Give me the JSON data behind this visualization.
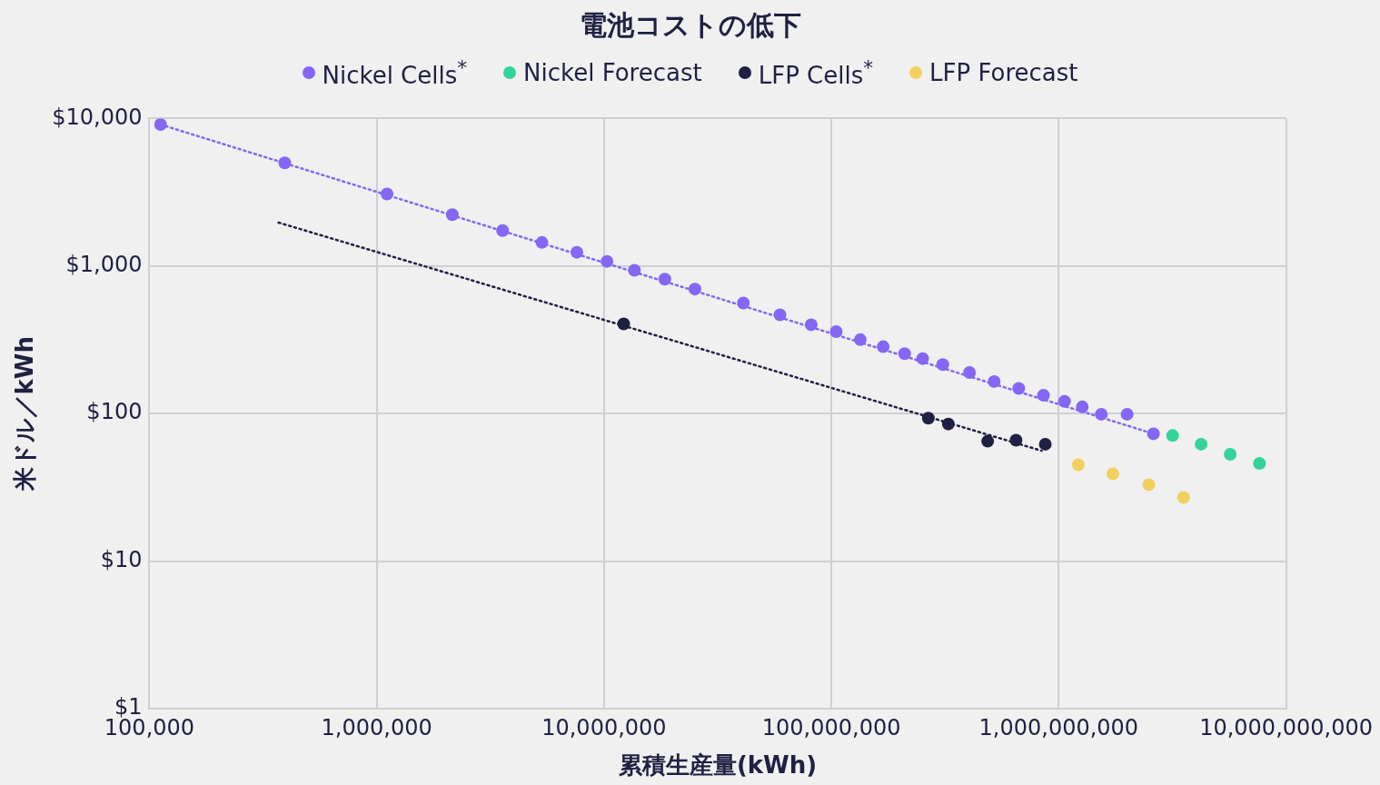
{
  "chart_data": {
    "type": "scatter",
    "title": "電池コストの低下",
    "xlabel": "累積生産量(kWh)",
    "ylabel": "米ドル／kWh",
    "log": "xy",
    "grid": true,
    "legend": "top",
    "marker": "circle",
    "xlim": [
      100000,
      10000000000
    ],
    "xticks": [
      {
        "value": 100000,
        "label": "100,000"
      },
      {
        "value": 1000000,
        "label": "1,000,000"
      },
      {
        "value": 10000000,
        "label": "10,000,000"
      },
      {
        "value": 100000000,
        "label": "100,000,000"
      },
      {
        "value": 1000000000,
        "label": "1,000,000,000"
      },
      {
        "value": 10000000000,
        "label": "10,000,000,000"
      }
    ],
    "ylim": [
      1,
      10000
    ],
    "yticks": [
      {
        "value": 1,
        "label": "$1"
      },
      {
        "value": 10,
        "label": "$10"
      },
      {
        "value": 100,
        "label": "$100"
      },
      {
        "value": 1000,
        "label": "$1,000"
      },
      {
        "value": 10000,
        "label": "$10,000"
      }
    ],
    "series": [
      {
        "name": "Nickel Cells$^{*}$",
        "color": "#8566f5",
        "x": [
          112000,
          394000,
          1110000,
          2150000,
          3580000,
          5330000,
          7590000,
          10300000,
          13600000,
          18500000,
          25100000,
          41000000,
          59400000,
          81500000,
          105000000,
          134000000,
          169000000,
          210000000,
          252000000,
          309000000,
          405000000,
          520000000,
          667000000,
          857000000,
          1060000000,
          1270000000,
          1540000000,
          2000000000,
          2610000000
        ],
        "values": [
          9100,
          5000,
          3080,
          2230,
          1740,
          1445,
          1240,
          1076,
          936,
          814,
          698,
          562,
          467,
          400,
          359,
          317,
          284,
          255,
          236,
          215,
          190,
          165,
          148,
          133,
          121,
          111,
          99,
          99,
          73
        ]
      },
      {
        "name": "Nickel Forecast",
        "color": "#34d399",
        "x": [
          3170000000,
          4230000000,
          5680000000,
          7640000000
        ],
        "values": [
          71,
          62,
          53,
          46
        ]
      },
      {
        "name": "LFP Cells$^{*}$",
        "color": "#1f2042",
        "x": [
          12200000,
          267000000,
          327000000,
          487000000,
          649000000,
          873000000
        ],
        "values": [
          405,
          93,
          85,
          65,
          66,
          62
        ]
      },
      {
        "name": "LFP Forecast",
        "color": "#f2d060",
        "x": [
          1220000000,
          1730000000,
          2490000000,
          3540000000
        ],
        "values": [
          45,
          39,
          33,
          27
        ]
      },
      {
        "type": "line",
        "marker": "none",
        "line_style": "dotted",
        "color": "#8566f5",
        "x": [
          112000,
          2610000000
        ],
        "values": [
          9100,
          73
        ]
      },
      {
        "type": "line",
        "marker": "none",
        "line_style": "dotted",
        "color": "#1f2042",
        "x": [
          370000,
          841000000
        ],
        "values": [
          1970,
          56
        ]
      }
    ]
  }
}
